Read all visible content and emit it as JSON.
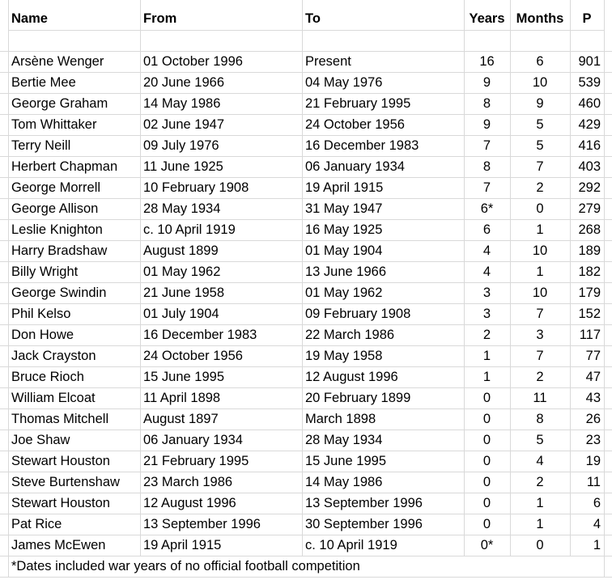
{
  "table": {
    "columns": [
      "Name",
      "From",
      "To",
      "Years",
      "Months",
      "P"
    ],
    "rows": [
      [
        "Arsène Wenger",
        "01 October 1996",
        "Present",
        16,
        6,
        901
      ],
      [
        "Bertie Mee",
        "20 June 1966",
        "04 May 1976",
        9,
        10,
        539
      ],
      [
        "George Graham",
        "14 May 1986",
        "21 February 1995",
        8,
        9,
        460
      ],
      [
        "Tom Whittaker",
        "02 June 1947",
        "24 October 1956",
        9,
        5,
        429
      ],
      [
        "Terry Neill",
        "09 July 1976",
        "16 December 1983",
        7,
        5,
        416
      ],
      [
        "Herbert Chapman",
        "11 June 1925",
        "06 January 1934",
        8,
        7,
        403
      ],
      [
        "George Morrell",
        "10 February 1908",
        "19 April 1915",
        7,
        2,
        292
      ],
      [
        "George Allison",
        "28 May 1934",
        "31 May 1947",
        "6*",
        0,
        279
      ],
      [
        "Leslie Knighton",
        "c. 10 April 1919",
        "16 May 1925",
        6,
        1,
        268
      ],
      [
        "Harry Bradshaw",
        "August 1899",
        "01 May 1904",
        4,
        10,
        189
      ],
      [
        "Billy Wright",
        "01 May 1962",
        "13 June 1966",
        4,
        1,
        182
      ],
      [
        "George Swindin",
        "21 June 1958",
        "01 May 1962",
        3,
        10,
        179
      ],
      [
        "Phil Kelso",
        "01 July 1904",
        "09 February 1908",
        3,
        7,
        152
      ],
      [
        "Don Howe",
        "16 December 1983",
        "22 March 1986",
        2,
        3,
        117
      ],
      [
        "Jack Crayston",
        "24 October 1956",
        "19 May 1958",
        1,
        7,
        77
      ],
      [
        "Bruce Rioch",
        "15 June 1995",
        "12 August 1996",
        1,
        2,
        47
      ],
      [
        "William Elcoat",
        "11 April 1898",
        "20 February 1899",
        0,
        11,
        43
      ],
      [
        "Thomas Mitchell",
        "August 1897",
        "March 1898",
        0,
        8,
        26
      ],
      [
        "Joe Shaw",
        "06 January 1934",
        "28 May 1934",
        0,
        5,
        23
      ],
      [
        "Stewart Houston",
        "21 February 1995",
        "15 June 1995",
        0,
        4,
        19
      ],
      [
        "Steve Burtenshaw",
        "23 March 1986",
        "14 May 1986",
        0,
        2,
        11
      ],
      [
        "Stewart Houston",
        "12 August 1996",
        "13 September 1996",
        0,
        1,
        6
      ],
      [
        "Pat Rice",
        "13 September 1996",
        "30 September 1996",
        0,
        1,
        4
      ],
      [
        "James McEwen",
        "19 April 1915",
        "c. 10 April 1919",
        "0*",
        0,
        1
      ]
    ]
  },
  "footnote": "*Dates included war years of no official football competition"
}
